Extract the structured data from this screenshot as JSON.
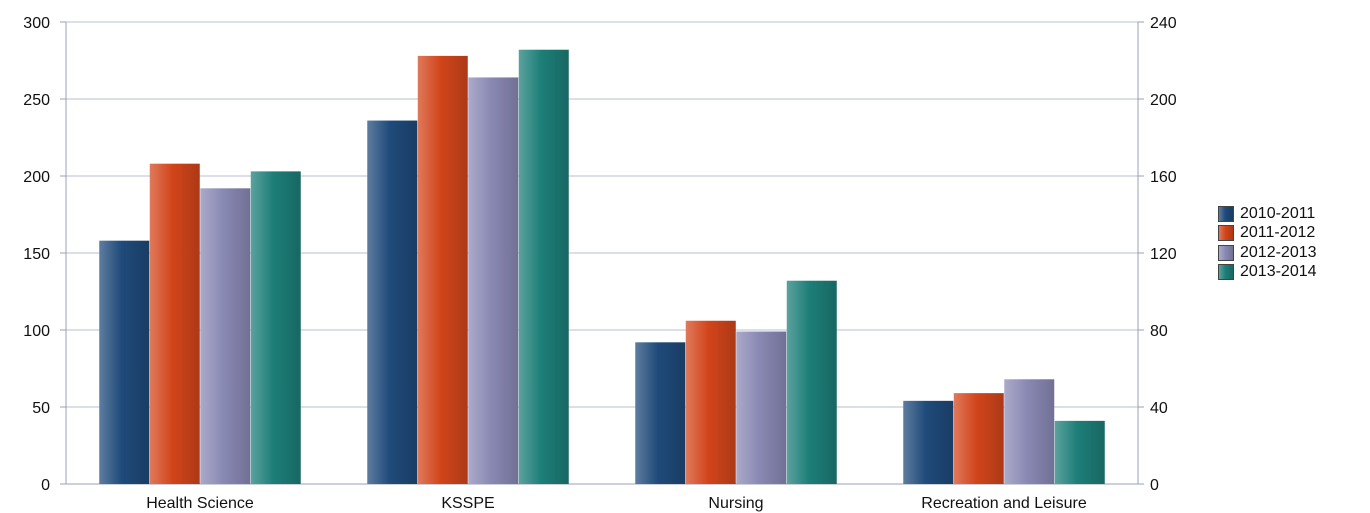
{
  "chart_data": {
    "type": "bar",
    "categories": [
      "Health Science",
      "KSSPE",
      "Nursing",
      "Recreation and Leisure"
    ],
    "series": [
      {
        "name": "2010-2011",
        "values": [
          158,
          236,
          92,
          54
        ],
        "color": "#1f4a7a"
      },
      {
        "name": "2011-2012",
        "values": [
          208,
          278,
          106,
          59
        ],
        "color": "#d2451b"
      },
      {
        "name": "2012-2013",
        "values": [
          192,
          264,
          99,
          68
        ],
        "color": "#8a89b4"
      },
      {
        "name": "2013-2014",
        "values": [
          203,
          282,
          132,
          41
        ],
        "color": "#1d7e78"
      }
    ],
    "ylim": [
      0,
      300
    ],
    "y_ticks": [
      "0",
      "50",
      "100",
      "150",
      "200",
      "250",
      "300"
    ],
    "y2lim": [
      0,
      240
    ],
    "y2_ticks": [
      "0",
      "40",
      "80",
      "120",
      "160",
      "200",
      "240"
    ],
    "grid": true,
    "legend_position": "right"
  }
}
